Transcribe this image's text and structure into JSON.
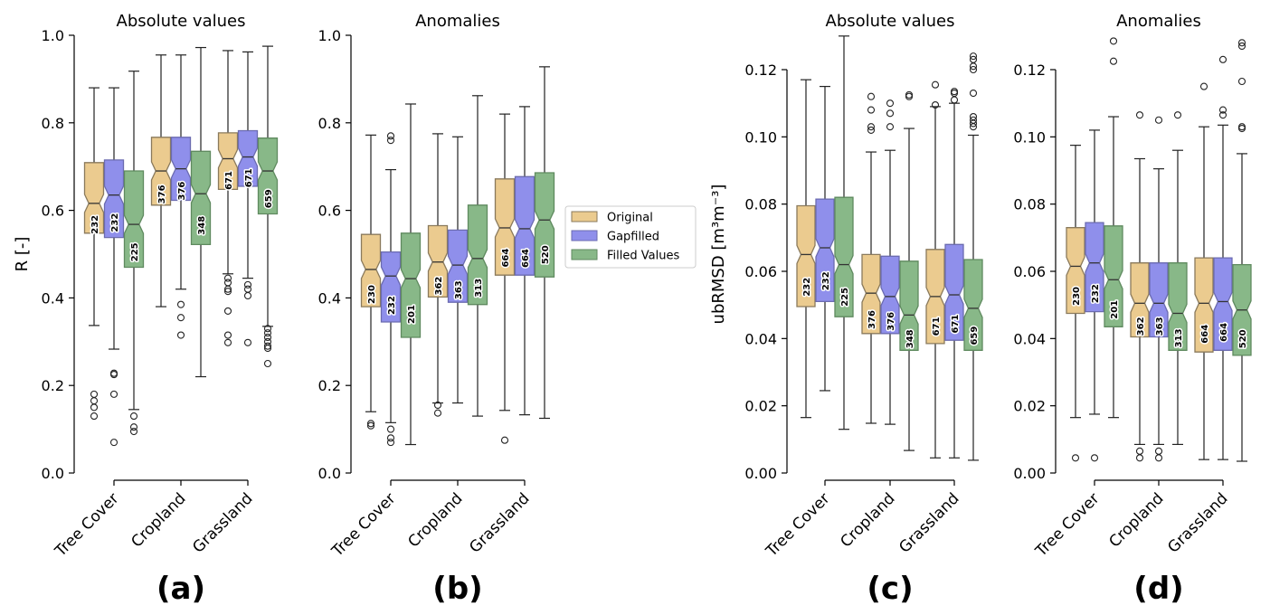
{
  "legend": {
    "entries": [
      {
        "name": "Original",
        "color": "#EBCB8F"
      },
      {
        "name": "Gapfilled",
        "color": "#8F8FEB"
      },
      {
        "name": "Filled Values",
        "color": "#88B888"
      }
    ]
  },
  "chart_data": [
    {
      "type": "box",
      "panel_label": "(a)",
      "title": "Absolute values",
      "ylabel": "R [-]",
      "ylim": [
        0.0,
        1.0
      ],
      "yticks": [
        "0.0",
        "0.2",
        "0.4",
        "0.6",
        "0.8",
        "1.0"
      ],
      "ytick_values": [
        0.0,
        0.2,
        0.4,
        0.6,
        0.8,
        1.0
      ],
      "categories": [
        "Tree Cover",
        "Cropland",
        "Grassland"
      ],
      "series": [
        {
          "name": "Original",
          "boxes": [
            {
              "whislo": 0.337,
              "q1": 0.548,
              "med": 0.616,
              "q3": 0.709,
              "whishi": 0.88,
              "n": "232",
              "fliers": [
                0.18,
                0.165,
                0.15,
                0.13
              ]
            },
            {
              "whislo": 0.38,
              "q1": 0.612,
              "med": 0.69,
              "q3": 0.767,
              "whishi": 0.955,
              "n": "376",
              "fliers": []
            },
            {
              "whislo": 0.455,
              "q1": 0.648,
              "med": 0.718,
              "q3": 0.777,
              "whishi": 0.965,
              "n": "671",
              "fliers": [
                0.445,
                0.435,
                0.42,
                0.415,
                0.37,
                0.315,
                0.298
              ]
            }
          ]
        },
        {
          "name": "Gapfilled",
          "boxes": [
            {
              "whislo": 0.283,
              "q1": 0.538,
              "med": 0.635,
              "q3": 0.715,
              "whishi": 0.88,
              "n": "232",
              "fliers": [
                0.228,
                0.225,
                0.18,
                0.07
              ]
            },
            {
              "whislo": 0.42,
              "q1": 0.623,
              "med": 0.695,
              "q3": 0.767,
              "whishi": 0.955,
              "n": "376",
              "fliers": [
                0.385,
                0.355,
                0.315
              ]
            },
            {
              "whislo": 0.445,
              "q1": 0.655,
              "med": 0.722,
              "q3": 0.782,
              "whishi": 0.962,
              "n": "671",
              "fliers": [
                0.43,
                0.42,
                0.405,
                0.298
              ]
            }
          ]
        },
        {
          "name": "Filled Values",
          "boxes": [
            {
              "whislo": 0.145,
              "q1": 0.47,
              "med": 0.568,
              "q3": 0.69,
              "whishi": 0.918,
              "n": "225",
              "fliers": [
                0.13,
                0.105,
                0.095
              ]
            },
            {
              "whislo": 0.22,
              "q1": 0.522,
              "med": 0.638,
              "q3": 0.735,
              "whishi": 0.972,
              "n": "348",
              "fliers": []
            },
            {
              "whislo": 0.335,
              "q1": 0.592,
              "med": 0.69,
              "q3": 0.765,
              "whishi": 0.975,
              "n": "659",
              "fliers": [
                0.33,
                0.32,
                0.31,
                0.3,
                0.29,
                0.285,
                0.25
              ]
            }
          ]
        }
      ]
    },
    {
      "type": "box",
      "panel_label": "(b)",
      "title": "Anomalies",
      "ylabel": "",
      "ylim": [
        0.0,
        1.0
      ],
      "yticks": [
        "0.0",
        "0.2",
        "0.4",
        "0.6",
        "0.8",
        "1.0"
      ],
      "ytick_values": [
        0.0,
        0.2,
        0.4,
        0.6,
        0.8,
        1.0
      ],
      "categories": [
        "Tree Cover",
        "Cropland",
        "Grassland"
      ],
      "series": [
        {
          "name": "Original",
          "boxes": [
            {
              "whislo": 0.14,
              "q1": 0.38,
              "med": 0.465,
              "q3": 0.545,
              "whishi": 0.772,
              "n": "230",
              "fliers": [
                0.113,
                0.108
              ]
            },
            {
              "whislo": 0.16,
              "q1": 0.402,
              "med": 0.482,
              "q3": 0.565,
              "whishi": 0.775,
              "n": "362",
              "fliers": [
                0.155,
                0.137
              ]
            },
            {
              "whislo": 0.143,
              "q1": 0.452,
              "med": 0.56,
              "q3": 0.672,
              "whishi": 0.82,
              "n": "664",
              "fliers": [
                0.075
              ]
            }
          ]
        },
        {
          "name": "Gapfilled",
          "boxes": [
            {
              "whislo": 0.115,
              "q1": 0.345,
              "med": 0.45,
              "q3": 0.505,
              "whishi": 0.693,
              "n": "232",
              "fliers": [
                0.77,
                0.76,
                0.1,
                0.08,
                0.07
              ]
            },
            {
              "whislo": 0.16,
              "q1": 0.39,
              "med": 0.475,
              "q3": 0.555,
              "whishi": 0.768,
              "n": "363",
              "fliers": []
            },
            {
              "whislo": 0.133,
              "q1": 0.452,
              "med": 0.558,
              "q3": 0.677,
              "whishi": 0.837,
              "n": "664",
              "fliers": []
            }
          ]
        },
        {
          "name": "Filled Values",
          "boxes": [
            {
              "whislo": 0.065,
              "q1": 0.31,
              "med": 0.444,
              "q3": 0.548,
              "whishi": 0.843,
              "n": "201",
              "fliers": []
            },
            {
              "whislo": 0.13,
              "q1": 0.385,
              "med": 0.49,
              "q3": 0.612,
              "whishi": 0.862,
              "n": "313",
              "fliers": []
            },
            {
              "whislo": 0.125,
              "q1": 0.448,
              "med": 0.578,
              "q3": 0.686,
              "whishi": 0.928,
              "n": "520",
              "fliers": []
            }
          ]
        }
      ]
    },
    {
      "type": "box",
      "panel_label": "(c)",
      "title": "Absolute values",
      "ylabel": "ubRMSD [m³m⁻³]",
      "ylim": [
        0.0,
        0.12
      ],
      "yticks": [
        "0.00",
        "0.02",
        "0.04",
        "0.06",
        "0.08",
        "0.10",
        "0.12"
      ],
      "ytick_values": [
        0.0,
        0.02,
        0.04,
        0.06,
        0.08,
        0.1,
        0.12
      ],
      "categories": [
        "Tree Cover",
        "Cropland",
        "Grassland"
      ],
      "series": [
        {
          "name": "Original",
          "boxes": [
            {
              "whislo": 0.0165,
              "q1": 0.0495,
              "med": 0.065,
              "q3": 0.0795,
              "whishi": 0.117,
              "n": "232",
              "fliers": []
            },
            {
              "whislo": 0.0148,
              "q1": 0.0415,
              "med": 0.0535,
              "q3": 0.065,
              "whishi": 0.0955,
              "n": "376",
              "fliers": [
                0.112,
                0.108,
                0.103,
                0.102
              ]
            },
            {
              "whislo": 0.0045,
              "q1": 0.0385,
              "med": 0.0525,
              "q3": 0.0665,
              "whishi": 0.109,
              "n": "671",
              "fliers": [
                0.1155,
                0.1095
              ]
            }
          ]
        },
        {
          "name": "Gapfilled",
          "boxes": [
            {
              "whislo": 0.0245,
              "q1": 0.051,
              "med": 0.067,
              "q3": 0.0815,
              "whishi": 0.115,
              "n": "232",
              "fliers": []
            },
            {
              "whislo": 0.0145,
              "q1": 0.0415,
              "med": 0.0525,
              "q3": 0.0645,
              "whishi": 0.096,
              "n": "376",
              "fliers": [
                0.11,
                0.107,
                0.103
              ]
            },
            {
              "whislo": 0.0045,
              "q1": 0.0395,
              "med": 0.053,
              "q3": 0.068,
              "whishi": 0.11,
              "n": "671",
              "fliers": [
                0.1135,
                0.113,
                0.111
              ]
            }
          ]
        },
        {
          "name": "Filled Values",
          "boxes": [
            {
              "whislo": 0.013,
              "q1": 0.0465,
              "med": 0.062,
              "q3": 0.082,
              "whishi": 0.13,
              "n": "225",
              "fliers": []
            },
            {
              "whislo": 0.0067,
              "q1": 0.0365,
              "med": 0.047,
              "q3": 0.063,
              "whishi": 0.1025,
              "n": "348",
              "fliers": [
                0.1125,
                0.112
              ]
            },
            {
              "whislo": 0.0038,
              "q1": 0.0365,
              "med": 0.049,
              "q3": 0.0635,
              "whishi": 0.1005,
              "n": "659",
              "fliers": [
                0.124,
                0.123,
                0.121,
                0.12,
                0.113,
                0.106,
                0.105,
                0.104,
                0.103
              ]
            }
          ]
        }
      ]
    },
    {
      "type": "box",
      "panel_label": "(d)",
      "title": "Anomalies",
      "ylabel": "",
      "ylim": [
        0.0,
        0.12
      ],
      "yticks": [
        "0.00",
        "0.02",
        "0.04",
        "0.06",
        "0.08",
        "0.10",
        "0.12"
      ],
      "ytick_values": [
        0.0,
        0.02,
        0.04,
        0.06,
        0.08,
        0.1,
        0.12
      ],
      "categories": [
        "Tree Cover",
        "Cropland",
        "Grassland"
      ],
      "series": [
        {
          "name": "Original",
          "boxes": [
            {
              "whislo": 0.0165,
              "q1": 0.0475,
              "med": 0.0615,
              "q3": 0.073,
              "whishi": 0.0975,
              "n": "230",
              "fliers": [
                0.0045
              ]
            },
            {
              "whislo": 0.0085,
              "q1": 0.0405,
              "med": 0.0505,
              "q3": 0.0625,
              "whishi": 0.0935,
              "n": "362",
              "fliers": [
                0.1065,
                0.0065,
                0.0045
              ]
            },
            {
              "whislo": 0.004,
              "q1": 0.036,
              "med": 0.0505,
              "q3": 0.064,
              "whishi": 0.103,
              "n": "664",
              "fliers": [
                0.115
              ]
            }
          ]
        },
        {
          "name": "Gapfilled",
          "boxes": [
            {
              "whislo": 0.0175,
              "q1": 0.048,
              "med": 0.0625,
              "q3": 0.0745,
              "whishi": 0.102,
              "n": "232",
              "fliers": [
                0.0045
              ]
            },
            {
              "whislo": 0.0085,
              "q1": 0.0405,
              "med": 0.0505,
              "q3": 0.0625,
              "whishi": 0.0905,
              "n": "363",
              "fliers": [
                0.105,
                0.0065,
                0.0045
              ]
            },
            {
              "whislo": 0.004,
              "q1": 0.0365,
              "med": 0.051,
              "q3": 0.064,
              "whishi": 0.1035,
              "n": "664",
              "fliers": [
                0.123,
                0.108,
                0.1065
              ]
            }
          ]
        },
        {
          "name": "Filled Values",
          "boxes": [
            {
              "whislo": 0.0165,
              "q1": 0.0435,
              "med": 0.0575,
              "q3": 0.0735,
              "whishi": 0.106,
              "n": "201",
              "fliers": [
                0.1285,
                0.1225
              ]
            },
            {
              "whislo": 0.0085,
              "q1": 0.0365,
              "med": 0.0475,
              "q3": 0.0625,
              "whishi": 0.096,
              "n": "313",
              "fliers": [
                0.1065
              ]
            },
            {
              "whislo": 0.0035,
              "q1": 0.035,
              "med": 0.0485,
              "q3": 0.062,
              "whishi": 0.095,
              "n": "520",
              "fliers": [
                0.128,
                0.127,
                0.1165,
                0.103,
                0.1025
              ]
            }
          ]
        }
      ]
    }
  ]
}
